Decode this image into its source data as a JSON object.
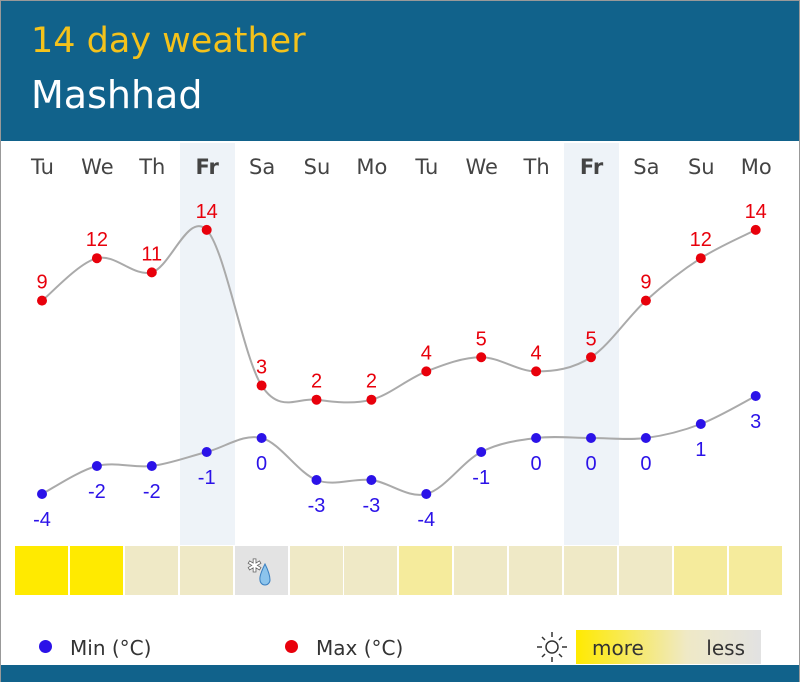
{
  "header": {
    "title": "14 day weather",
    "city": "Mashhad"
  },
  "days": [
    "Tu",
    "We",
    "Th",
    "Fr",
    "Sa",
    "Su",
    "Mo",
    "Tu",
    "We",
    "Th",
    "Fr",
    "Sa",
    "Su",
    "Mo"
  ],
  "highlighted_days": [
    3,
    10
  ],
  "chart_data": {
    "type": "line",
    "categories": [
      "Tu",
      "We",
      "Th",
      "Fr",
      "Sa",
      "Su",
      "Mo",
      "Tu",
      "We",
      "Th",
      "Fr",
      "Sa",
      "Su",
      "Mo"
    ],
    "series": [
      {
        "name": "Max (°C)",
        "color": "#e8000b",
        "values": [
          9,
          12,
          11,
          14,
          3,
          2,
          2,
          4,
          5,
          4,
          5,
          9,
          12,
          14
        ]
      },
      {
        "name": "Min (°C)",
        "color": "#2b12e8",
        "values": [
          -4,
          -2,
          -2,
          -1,
          0,
          -3,
          -3,
          -4,
          -1,
          0,
          0,
          0,
          1,
          3
        ]
      }
    ]
  },
  "sunshine": [
    "more",
    "more",
    "low",
    "low",
    "snow-rain-icon",
    "low",
    "low",
    "mid",
    "low",
    "low",
    "low",
    "low",
    "mid",
    "mid"
  ],
  "sunshine_colors": {
    "more": "#ffea00",
    "mid": "#f5eb9c",
    "low": "#efe9c6"
  },
  "legend": {
    "min": "Min (°C)",
    "max": "Max (°C)",
    "more": "more",
    "less": "less",
    "sun_icon": "sun-icon"
  }
}
